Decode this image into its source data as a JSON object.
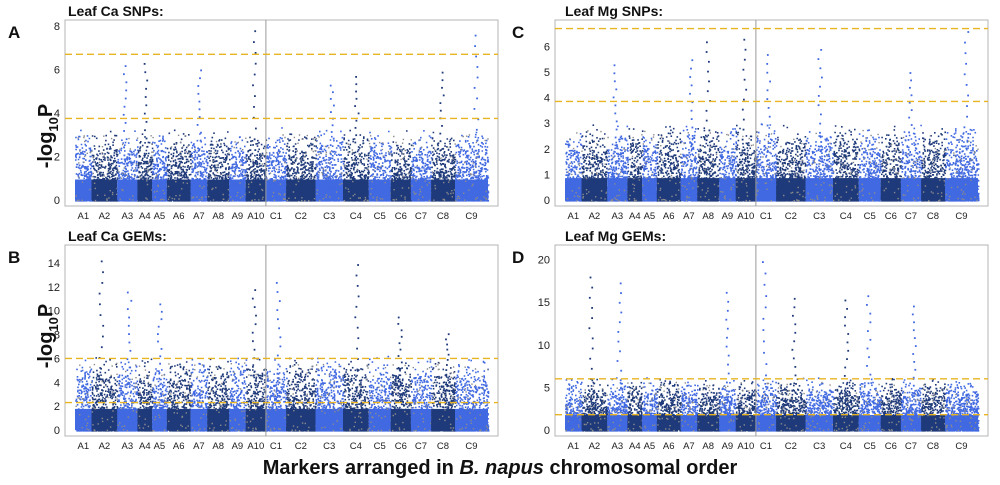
{
  "figure": {
    "xlabel_prefix": "Markers arranged in ",
    "xlabel_species": "B. napus",
    "xlabel_suffix": " chromosomal order",
    "ylabel_main": "-log",
    "ylabel_sub": "10",
    "ylabel_end": "P"
  },
  "colors": {
    "light": "#4169e1",
    "dark": "#1f3a7a",
    "threshold": "#e8b422",
    "frame": "#b4b4b4"
  },
  "chart_data": [
    {
      "id": "A",
      "type": "scatter",
      "panel_label": "A",
      "title": "Leaf Ca SNPs:",
      "ylim": [
        0,
        8
      ],
      "yticks": [
        0,
        2,
        4,
        6,
        8
      ],
      "chromosomes": [
        "A1",
        "A2",
        "A3",
        "A4",
        "A5",
        "A6",
        "A7",
        "A8",
        "A9",
        "A10",
        "C1",
        "C2",
        "C3",
        "C4",
        "C5",
        "C6",
        "C7",
        "C8",
        "C9"
      ],
      "thresholds": [
        6.7,
        3.75
      ],
      "divider_after": "A10",
      "peaks": [
        {
          "chr": "A3",
          "value": 6.2
        },
        {
          "chr": "A4",
          "value": 6.3
        },
        {
          "chr": "A7",
          "value": 6.0
        },
        {
          "chr": "A10",
          "value": 7.8
        },
        {
          "chr": "C3",
          "value": 5.3
        },
        {
          "chr": "C4",
          "value": 5.7
        },
        {
          "chr": "C8",
          "value": 5.9
        },
        {
          "chr": "C9",
          "value": 7.6
        }
      ]
    },
    {
      "id": "B",
      "type": "scatter",
      "panel_label": "B",
      "title": "Leaf Ca GEMs:",
      "ylim": [
        0,
        15
      ],
      "yticks": [
        0,
        2,
        4,
        6,
        8,
        10,
        12,
        14
      ],
      "chromosomes": [
        "A1",
        "A2",
        "A3",
        "A4",
        "A5",
        "A6",
        "A7",
        "A8",
        "A9",
        "A10",
        "C1",
        "C2",
        "C3",
        "C4",
        "C5",
        "C6",
        "C7",
        "C8",
        "C9"
      ],
      "thresholds": [
        6.0,
        2.3
      ],
      "divider_after": "A10",
      "peaks": [
        {
          "chr": "A2",
          "value": 14.2
        },
        {
          "chr": "A3",
          "value": 11.6
        },
        {
          "chr": "A5",
          "value": 10.6
        },
        {
          "chr": "A10",
          "value": 11.8
        },
        {
          "chr": "C1",
          "value": 12.4
        },
        {
          "chr": "C4",
          "value": 13.9
        },
        {
          "chr": "C6",
          "value": 9.5
        },
        {
          "chr": "C8",
          "value": 8.1
        }
      ]
    },
    {
      "id": "C",
      "type": "scatter",
      "panel_label": "C",
      "title": "Leaf Mg SNPs:",
      "ylim": [
        0,
        6.8
      ],
      "yticks": [
        0,
        1,
        2,
        3,
        4,
        5,
        6
      ],
      "chromosomes": [
        "A1",
        "A2",
        "A3",
        "A4",
        "A5",
        "A6",
        "A7",
        "A8",
        "A9",
        "A10",
        "C1",
        "C2",
        "C3",
        "C4",
        "C5",
        "C6",
        "C7",
        "C8",
        "C9"
      ],
      "thresholds": [
        6.7,
        3.85
      ],
      "divider_after": "A10",
      "peaks": [
        {
          "chr": "A3",
          "value": 5.3
        },
        {
          "chr": "A7",
          "value": 5.5
        },
        {
          "chr": "A8",
          "value": 6.2
        },
        {
          "chr": "A10",
          "value": 6.3
        },
        {
          "chr": "C1",
          "value": 5.7
        },
        {
          "chr": "C3",
          "value": 5.9
        },
        {
          "chr": "C7",
          "value": 5.0
        },
        {
          "chr": "C9",
          "value": 6.6
        }
      ]
    },
    {
      "id": "D",
      "type": "scatter",
      "panel_label": "D",
      "title": "Leaf Mg GEMs:",
      "ylim": [
        0,
        21
      ],
      "yticks": [
        0,
        5,
        10,
        15,
        20
      ],
      "chromosomes": [
        "A1",
        "A2",
        "A3",
        "A4",
        "A5",
        "A6",
        "A7",
        "A8",
        "A9",
        "A10",
        "C1",
        "C2",
        "C3",
        "C4",
        "C5",
        "C6",
        "C7",
        "C8",
        "C9"
      ],
      "thresholds": [
        6.0,
        1.8
      ],
      "divider_after": "A10",
      "peaks": [
        {
          "chr": "A2",
          "value": 18.0
        },
        {
          "chr": "A3",
          "value": 17.3
        },
        {
          "chr": "A9",
          "value": 16.2
        },
        {
          "chr": "C1",
          "value": 19.8
        },
        {
          "chr": "C2",
          "value": 15.5
        },
        {
          "chr": "C4",
          "value": 15.3
        },
        {
          "chr": "C5",
          "value": 15.8
        },
        {
          "chr": "C7",
          "value": 14.6
        }
      ]
    }
  ]
}
